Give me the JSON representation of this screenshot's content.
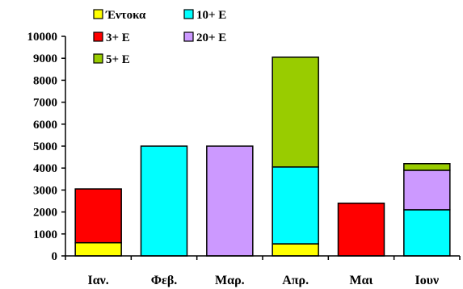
{
  "chart_data": {
    "type": "bar",
    "stacked": true,
    "categories": [
      "Ιαν.",
      "Φεβ.",
      "Μαρ.",
      "Απρ.",
      "Μαι",
      "Ιουν"
    ],
    "series": [
      {
        "name": "Έντοκα",
        "color": "#ffff00",
        "values": [
          600,
          0,
          0,
          550,
          0,
          0
        ]
      },
      {
        "name": "3+ Ε",
        "color": "#ff0000",
        "values": [
          2450,
          0,
          0,
          0,
          2400,
          0
        ]
      },
      {
        "name": "10+ Ε",
        "color": "#00ffff",
        "values": [
          0,
          5000,
          0,
          3500,
          0,
          2100
        ]
      },
      {
        "name": "20+ Ε",
        "color": "#cc99ff",
        "values": [
          0,
          0,
          5000,
          0,
          0,
          1800
        ]
      },
      {
        "name": "5+ Ε",
        "color": "#99cc00",
        "values": [
          0,
          0,
          0,
          5000,
          0,
          300
        ]
      }
    ],
    "ylim": [
      0,
      10000
    ],
    "yticks": [
      0,
      1000,
      2000,
      3000,
      4000,
      5000,
      6000,
      7000,
      8000,
      9000,
      10000
    ],
    "grid": false,
    "legend_position": "top-left"
  }
}
